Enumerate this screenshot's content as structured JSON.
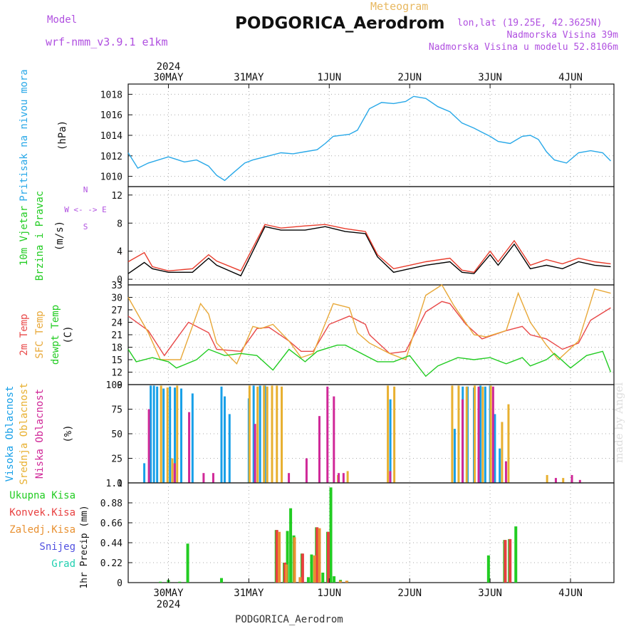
{
  "header": {
    "title": "PODGORICA_Aerodrom",
    "meteogram": "Meteogram",
    "model_label": "Model",
    "model_name": "wrf-nmm_v3.9.1 e1km",
    "lonlat": "lon,lat (19.25E, 42.3625N)",
    "altitude": "Nadmorska Visina 39m",
    "model_altitude": "Nadmorska Visina u modelu 52.8106m",
    "footer": "PODGORICA_Aerodrom",
    "credit": "made by Angel"
  },
  "x_axis": {
    "year": "2024",
    "day_labels": [
      "30MAY",
      "31MAY",
      "1JUN",
      "2JUN",
      "3JUN",
      "4JUN"
    ],
    "day_positions": [
      0.5,
      1.5,
      2.5,
      3.5,
      4.5,
      5.5
    ],
    "range": [
      0.0,
      6.04
    ]
  },
  "chart_data": [
    {
      "type": "line",
      "panel": "pressure",
      "ylabel": [
        "Pritisak na nivou mora",
        "(hPa)"
      ],
      "ylim": [
        1009,
        1019
      ],
      "yticks": [
        1010,
        1012,
        1014,
        1016,
        1018
      ],
      "color": "#28a8e8",
      "x": [
        0.0,
        0.12,
        0.25,
        0.5,
        0.58,
        0.7,
        0.85,
        1.0,
        1.1,
        1.2,
        1.3,
        1.45,
        1.55,
        1.75,
        1.9,
        2.05,
        2.2,
        2.35,
        2.45,
        2.55,
        2.75,
        2.85,
        3.0,
        3.15,
        3.3,
        3.45,
        3.55,
        3.7,
        3.85,
        4.0,
        4.15,
        4.3,
        4.4,
        4.5,
        4.6,
        4.75,
        4.9,
        5.0,
        5.1,
        5.2,
        5.3,
        5.45,
        5.6,
        5.75,
        5.9,
        6.0
      ],
      "values": [
        1012.3,
        1010.8,
        1011.3,
        1011.9,
        1011.7,
        1011.4,
        1011.6,
        1011.0,
        1010.1,
        1009.6,
        1010.3,
        1011.3,
        1011.6,
        1012.0,
        1012.3,
        1012.2,
        1012.4,
        1012.6,
        1013.2,
        1013.9,
        1014.1,
        1014.5,
        1016.6,
        1017.2,
        1017.1,
        1017.3,
        1017.8,
        1017.6,
        1016.8,
        1016.3,
        1015.2,
        1014.7,
        1014.3,
        1013.9,
        1013.4,
        1013.2,
        1013.9,
        1014.0,
        1013.6,
        1012.4,
        1011.6,
        1011.3,
        1012.3,
        1012.5,
        1012.3,
        1011.5
      ]
    },
    {
      "type": "line",
      "panel": "wind",
      "ylabel": [
        "10m Vjetar",
        "Brzina i Pravac",
        "(m/s)"
      ],
      "direction_legend": [
        "N",
        "W <- -> E",
        "S"
      ],
      "ylim": [
        -0.8,
        13.2
      ],
      "yticks": [
        0,
        4,
        8,
        12
      ],
      "note": "wind barbs omitted; speed curves only",
      "series": [
        {
          "color": "#000000",
          "x": [
            0.0,
            0.2,
            0.3,
            0.5,
            0.8,
            1.0,
            1.1,
            1.4,
            1.7,
            1.9,
            2.2,
            2.45,
            2.7,
            2.95,
            3.1,
            3.3,
            3.5,
            3.7,
            4.0,
            4.15,
            4.3,
            4.5,
            4.6,
            4.8,
            5.0,
            5.2,
            5.4,
            5.6,
            5.8,
            6.0
          ],
          "values": [
            0.8,
            2.4,
            1.5,
            1.0,
            1.0,
            3.0,
            2.0,
            0.5,
            7.5,
            7.0,
            7.0,
            7.5,
            6.8,
            6.5,
            3.2,
            1.0,
            1.5,
            2.0,
            2.5,
            1.0,
            0.8,
            3.5,
            2.0,
            5.0,
            1.5,
            2.0,
            1.5,
            2.5,
            2.0,
            1.8
          ]
        },
        {
          "color": "#e83c2c",
          "x": [
            0.0,
            0.2,
            0.3,
            0.5,
            0.8,
            1.0,
            1.1,
            1.4,
            1.7,
            1.9,
            2.2,
            2.45,
            2.7,
            2.95,
            3.1,
            3.3,
            3.5,
            3.7,
            4.0,
            4.15,
            4.3,
            4.5,
            4.6,
            4.8,
            5.0,
            5.2,
            5.4,
            5.6,
            5.8,
            6.0
          ],
          "values": [
            2.5,
            3.8,
            1.8,
            1.2,
            1.5,
            3.5,
            2.6,
            1.2,
            7.8,
            7.3,
            7.6,
            7.8,
            7.2,
            6.8,
            3.5,
            1.5,
            2.0,
            2.5,
            3.0,
            1.3,
            1.0,
            4.0,
            2.5,
            5.5,
            2.0,
            2.8,
            2.2,
            3.0,
            2.5,
            2.2
          ]
        }
      ]
    },
    {
      "type": "line",
      "panel": "temperature",
      "ylabel": [
        "2m Temp",
        "SFC Temp",
        "dewpt Temp",
        "(C)"
      ],
      "ylim": [
        9,
        33
      ],
      "yticks": [
        9,
        12,
        15,
        18,
        21,
        24,
        27,
        30,
        33
      ],
      "series": [
        {
          "name": "2m Temp",
          "color": "#e84848",
          "x": [
            0.0,
            0.25,
            0.45,
            0.75,
            1.0,
            1.1,
            1.4,
            1.6,
            1.75,
            2.0,
            2.15,
            2.3,
            2.5,
            2.75,
            2.95,
            3.0,
            3.25,
            3.45,
            3.7,
            3.9,
            4.0,
            4.2,
            4.4,
            4.7,
            4.9,
            5.0,
            5.2,
            5.4,
            5.6,
            5.75,
            6.0
          ],
          "values": [
            25.5,
            22.0,
            16.0,
            24.0,
            21.5,
            17.5,
            17.0,
            22.5,
            22.8,
            19.5,
            17.0,
            17.0,
            23.5,
            25.5,
            23.5,
            21.0,
            16.5,
            17.0,
            26.5,
            29.0,
            28.5,
            23.5,
            20.0,
            22.0,
            23.0,
            21.0,
            20.0,
            17.5,
            19.0,
            24.5,
            27.5
          ]
        },
        {
          "name": "SFC Temp",
          "color": "#e8a838",
          "x": [
            0.0,
            0.25,
            0.4,
            0.65,
            0.9,
            1.0,
            1.1,
            1.35,
            1.55,
            1.65,
            1.8,
            2.0,
            2.15,
            2.3,
            2.55,
            2.75,
            2.85,
            3.0,
            3.25,
            3.45,
            3.7,
            3.9,
            4.05,
            4.3,
            4.45,
            4.7,
            4.85,
            5.0,
            5.2,
            5.35,
            5.6,
            5.8,
            6.0
          ],
          "values": [
            30.0,
            21.5,
            15.0,
            15.0,
            28.5,
            26.0,
            19.0,
            14.0,
            23.0,
            22.5,
            23.5,
            19.5,
            15.5,
            16.5,
            28.5,
            27.5,
            21.5,
            19.0,
            16.5,
            15.0,
            30.5,
            33.0,
            28.0,
            21.0,
            20.5,
            22.0,
            31.0,
            24.0,
            18.5,
            15.0,
            19.5,
            32.0,
            31.0
          ]
        },
        {
          "name": "dewpt Temp",
          "color": "#22cc22",
          "x": [
            0.0,
            0.1,
            0.3,
            0.5,
            0.6,
            0.85,
            1.0,
            1.2,
            1.4,
            1.6,
            1.8,
            2.0,
            2.2,
            2.35,
            2.6,
            2.7,
            3.0,
            3.1,
            3.3,
            3.5,
            3.7,
            3.85,
            4.1,
            4.3,
            4.5,
            4.7,
            4.9,
            5.0,
            5.2,
            5.3,
            5.5,
            5.7,
            5.9,
            6.0
          ],
          "values": [
            17.5,
            14.5,
            15.5,
            14.5,
            13.0,
            15.0,
            17.5,
            16.0,
            16.5,
            16.0,
            12.5,
            17.5,
            14.5,
            17.0,
            18.5,
            18.5,
            15.5,
            14.5,
            14.5,
            16.0,
            11.0,
            13.5,
            15.5,
            15.0,
            15.5,
            14.0,
            15.5,
            13.5,
            15.0,
            16.5,
            13.0,
            16.0,
            17.0,
            12.0
          ]
        }
      ]
    },
    {
      "type": "bar",
      "panel": "cloud",
      "ylabel": [
        "Visoka Oblacnost",
        "Srednja Oblacnost",
        "Niska Oblacnost",
        "(%)"
      ],
      "ylim": [
        0,
        100
      ],
      "yticks": [
        0,
        25,
        50,
        75,
        100
      ],
      "series": [
        {
          "name": "Visoka Oblacnost",
          "color": "#18a0e8",
          "x": [
            0.2,
            0.28,
            0.32,
            0.36,
            0.44,
            0.52,
            0.58,
            0.66,
            0.8,
            1.16,
            1.2,
            1.26,
            1.5,
            1.56,
            1.64,
            1.7,
            3.26,
            4.06,
            4.16,
            4.22,
            4.3,
            4.38,
            4.44,
            4.5,
            4.56,
            4.62
          ],
          "values": [
            20,
            99,
            99,
            98,
            96,
            98,
            97,
            96,
            91,
            98,
            88,
            70,
            86,
            99,
            99,
            99,
            85,
            55,
            98,
            98,
            97,
            99,
            98,
            99,
            70,
            35
          ]
        },
        {
          "name": "Srednja Oblacnost",
          "color": "#e8b030",
          "x": [
            0.4,
            0.48,
            0.54,
            0.6,
            1.5,
            1.6,
            1.68,
            1.72,
            1.78,
            1.84,
            1.9,
            2.6,
            2.72,
            3.22,
            3.3,
            4.02,
            4.1,
            4.2,
            4.3,
            4.4,
            4.5,
            4.64,
            4.72,
            5.2,
            5.4
          ],
          "values": [
            99,
            97,
            25,
            99,
            99,
            98,
            99,
            98,
            99,
            99,
            98,
            8,
            12,
            99,
            98,
            99,
            99,
            98,
            99,
            98,
            99,
            62,
            80,
            8,
            5
          ]
        },
        {
          "name": "Niska Oblacnost",
          "color": "#d02898",
          "x": [
            0.24,
            0.56,
            0.74,
            0.92,
            1.04,
            1.56,
            1.98,
            2.2,
            2.36,
            2.46,
            2.54,
            2.6,
            2.66,
            3.24,
            4.14,
            4.34,
            4.52,
            4.68,
            5.3,
            5.5,
            5.6
          ],
          "values": [
            75,
            20,
            72,
            10,
            10,
            60,
            10,
            25,
            68,
            98,
            88,
            10,
            10,
            12,
            85,
            98,
            98,
            22,
            5,
            8,
            3
          ]
        }
      ]
    },
    {
      "type": "bar",
      "panel": "precip",
      "ylabel": [
        "1hr Precip (mm)"
      ],
      "legend": [
        "Ukupna Kisa",
        "Konvek.Kisa",
        "Zaledj.Kisa",
        "Snijeg",
        "Grad"
      ],
      "legend_colors": [
        "#22cc22",
        "#e84040",
        "#e89030",
        "#5050e0",
        "#20d0b0"
      ],
      "ylim": [
        0,
        1.1
      ],
      "yticks": [
        0,
        0.22,
        0.44,
        0.66,
        0.88,
        1.1
      ],
      "series": [
        {
          "name": "Ukupna Kisa",
          "color": "#22cc22",
          "x": [
            0.4,
            0.5,
            0.64,
            0.74,
            1.16,
            1.84,
            1.94,
            1.98,
            2.02,
            2.06,
            2.16,
            2.24,
            2.28,
            2.34,
            2.42,
            2.48,
            2.52,
            2.56,
            2.64,
            2.72,
            4.48,
            4.68,
            4.74,
            4.82
          ],
          "values": [
            0.01,
            0.03,
            0.01,
            0.43,
            0.05,
            0.58,
            0.22,
            0.57,
            0.82,
            0.52,
            0.32,
            0.06,
            0.31,
            0.61,
            0.11,
            0.56,
            1.05,
            0.07,
            0.03,
            0.02,
            0.3,
            0.47,
            0.48,
            0.62
          ]
        },
        {
          "name": "Konvek.Kisa",
          "color": "#e84040",
          "x": [
            1.84,
            1.94,
            2.16,
            2.34,
            2.48,
            4.68,
            4.74
          ],
          "values": [
            0.58,
            0.22,
            0.32,
            0.61,
            0.56,
            0.47,
            0.48
          ]
        },
        {
          "name": "Zaledj.Kisa",
          "color": "#e89030",
          "x": [
            1.86,
            1.95,
            2.05,
            2.12,
            2.3,
            2.36,
            2.62,
            2.7
          ],
          "values": [
            0.56,
            0.2,
            0.5,
            0.06,
            0.3,
            0.6,
            0.02,
            0.02
          ]
        }
      ]
    }
  ]
}
